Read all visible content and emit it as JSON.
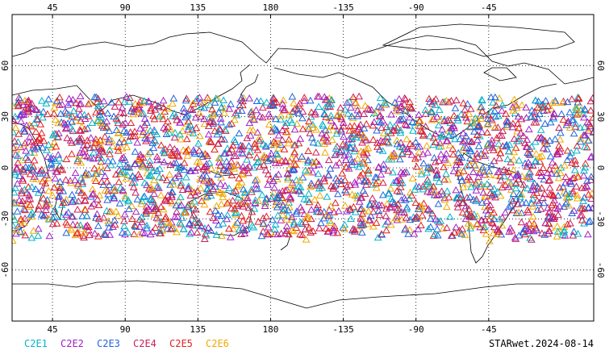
{
  "map": {
    "projection": "cylindrical equidistant, centered on 180",
    "lon_range": [
      20,
      380
    ],
    "lat_range": [
      -90,
      90
    ],
    "grid": "dotted",
    "top_ticks": [
      "45",
      "90",
      "135",
      "180",
      "-135",
      "-90",
      "-45"
    ],
    "bottom_ticks": [
      "45",
      "90",
      "135",
      "180",
      "-135",
      "-90",
      "-45"
    ],
    "left_ticks": [
      "60",
      "30",
      "0",
      "-30",
      "-60"
    ],
    "right_ticks": [
      "60",
      "30",
      "0",
      "-30",
      "-60"
    ],
    "coastline_color": "#000000",
    "marker": "triangle-outline"
  },
  "legend": {
    "items": [
      {
        "label": "C2E1",
        "color": "#00b4c8"
      },
      {
        "label": "C2E2",
        "color": "#a020c8"
      },
      {
        "label": "C2E3",
        "color": "#1e64dc"
      },
      {
        "label": "C2E4",
        "color": "#c81e5a"
      },
      {
        "label": "C2E5",
        "color": "#e01e1e"
      },
      {
        "label": "C2E6",
        "color": "#f0aa00"
      }
    ]
  },
  "footer": {
    "stamp": "STARwet.2024-08-14"
  }
}
